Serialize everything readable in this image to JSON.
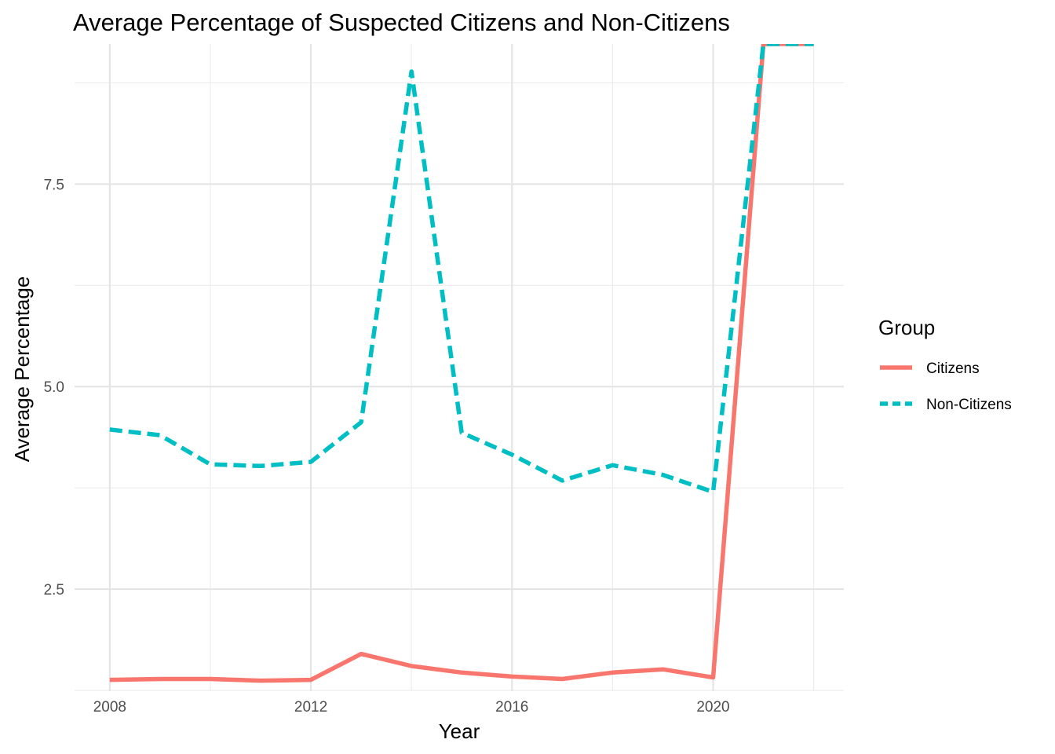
{
  "chart_data": {
    "type": "line",
    "title": "Average Percentage of Suspected Citizens and Non-Citizens",
    "xlabel": "Year",
    "ylabel": "Average Percentage",
    "xlim": [
      2007.3,
      2022.6
    ],
    "ylim": [
      1.24,
      9.23
    ],
    "x_ticks": [
      {
        "value": 2008,
        "label": "2008"
      },
      {
        "value": 2012,
        "label": "2012"
      },
      {
        "value": 2016,
        "label": "2016"
      },
      {
        "value": 2020,
        "label": "2020"
      }
    ],
    "x_minor": [
      2010,
      2014,
      2018,
      2022
    ],
    "y_ticks": [
      {
        "value": 2.5,
        "label": "2.5"
      },
      {
        "value": 5.0,
        "label": "5.0"
      },
      {
        "value": 7.5,
        "label": "7.5"
      }
    ],
    "y_minor": [
      1.25,
      3.75,
      6.25,
      8.75
    ],
    "grid": true,
    "legend": {
      "title": "Group",
      "position": "right"
    },
    "x": [
      2008,
      2009,
      2010,
      2011,
      2012,
      2013,
      2014,
      2015,
      2016,
      2017,
      2018,
      2019,
      2020,
      2021,
      2022
    ],
    "series": [
      {
        "name": "Citizens",
        "color": "#F8766D",
        "dash": "solid",
        "values": [
          1.38,
          1.39,
          1.39,
          1.37,
          1.38,
          1.7,
          1.55,
          1.47,
          1.42,
          1.39,
          1.47,
          1.51,
          1.41,
          9.23,
          9.23
        ]
      },
      {
        "name": "Non-Citizens",
        "color": "#00BFC4",
        "dash": "dashed",
        "values": [
          4.47,
          4.4,
          4.04,
          4.02,
          4.07,
          4.56,
          8.89,
          4.43,
          4.16,
          3.84,
          4.03,
          3.91,
          3.7,
          9.23,
          9.23
        ]
      }
    ]
  }
}
